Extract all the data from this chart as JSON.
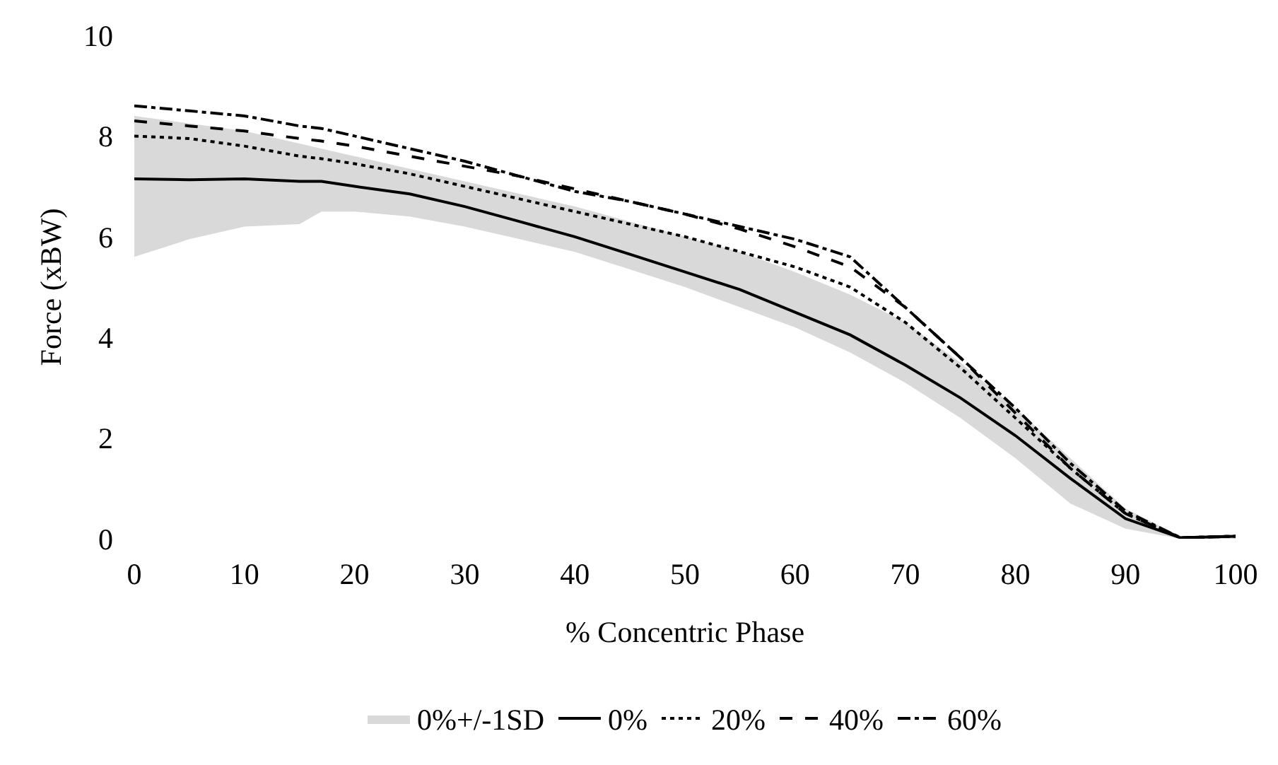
{
  "chart_data": {
    "type": "line",
    "xlabel": "% Concentric Phase",
    "ylabel": "Force (xBW)",
    "x": [
      0,
      5,
      10,
      15,
      17,
      20,
      25,
      30,
      35,
      40,
      45,
      50,
      55,
      60,
      65,
      70,
      75,
      80,
      85,
      90,
      95,
      100
    ],
    "xlim": [
      0,
      100
    ],
    "xticks": [
      0,
      10,
      20,
      30,
      40,
      50,
      60,
      70,
      80,
      90,
      100
    ],
    "ylim": [
      0,
      10
    ],
    "yticks": [
      0,
      2,
      4,
      6,
      8,
      10
    ],
    "grid": false,
    "legend": "bottom",
    "series": [
      {
        "name": "0%+/-1SD",
        "type": "area",
        "color": "#d9d9d9",
        "values": [
          null,
          null,
          null,
          null,
          null,
          null,
          null,
          null,
          null,
          null,
          null,
          null,
          null,
          null,
          null,
          null,
          null,
          null,
          null,
          null,
          null,
          null
        ],
        "upper": [
          8.4,
          8.25,
          8.1,
          7.85,
          7.75,
          7.6,
          7.35,
          7.1,
          6.85,
          6.6,
          6.3,
          6.0,
          5.7,
          5.3,
          4.85,
          4.3,
          3.5,
          2.6,
          1.6,
          0.6,
          0.05,
          0.05
        ],
        "lower": [
          5.6,
          5.95,
          6.2,
          6.25,
          6.5,
          6.5,
          6.4,
          6.2,
          5.95,
          5.7,
          5.35,
          5.0,
          4.6,
          4.2,
          3.7,
          3.1,
          2.4,
          1.6,
          0.7,
          0.2,
          0,
          0
        ]
      },
      {
        "name": "0%",
        "color": "#000000",
        "line_style": "solid",
        "values": [
          7.15,
          7.13,
          7.15,
          7.1,
          7.1,
          7.0,
          6.85,
          6.6,
          6.3,
          6.0,
          5.65,
          5.3,
          4.95,
          4.5,
          4.05,
          3.45,
          2.8,
          2.05,
          1.2,
          0.4,
          0.02,
          0.05
        ]
      },
      {
        "name": "20%",
        "color": "#000000",
        "line_style": "dotted",
        "values": [
          8.0,
          7.95,
          7.8,
          7.6,
          7.55,
          7.45,
          7.25,
          7.0,
          6.75,
          6.5,
          6.25,
          6.0,
          5.7,
          5.4,
          5.0,
          4.3,
          3.4,
          2.4,
          1.4,
          0.5,
          0.02,
          0.05
        ]
      },
      {
        "name": "40%",
        "color": "#000000",
        "line_style": "dashed",
        "values": [
          8.3,
          8.2,
          8.1,
          7.95,
          7.9,
          7.8,
          7.6,
          7.4,
          7.2,
          6.95,
          6.7,
          6.45,
          6.15,
          5.8,
          5.4,
          4.6,
          3.6,
          2.5,
          1.4,
          0.5,
          0.02,
          0.05
        ]
      },
      {
        "name": "60%",
        "color": "#000000",
        "line_style": "dashdot",
        "values": [
          8.6,
          8.5,
          8.4,
          8.2,
          8.15,
          8.0,
          7.75,
          7.5,
          7.2,
          6.9,
          6.7,
          6.45,
          6.2,
          5.95,
          5.6,
          4.6,
          3.6,
          2.6,
          1.5,
          0.55,
          0.02,
          0.05
        ]
      }
    ]
  }
}
